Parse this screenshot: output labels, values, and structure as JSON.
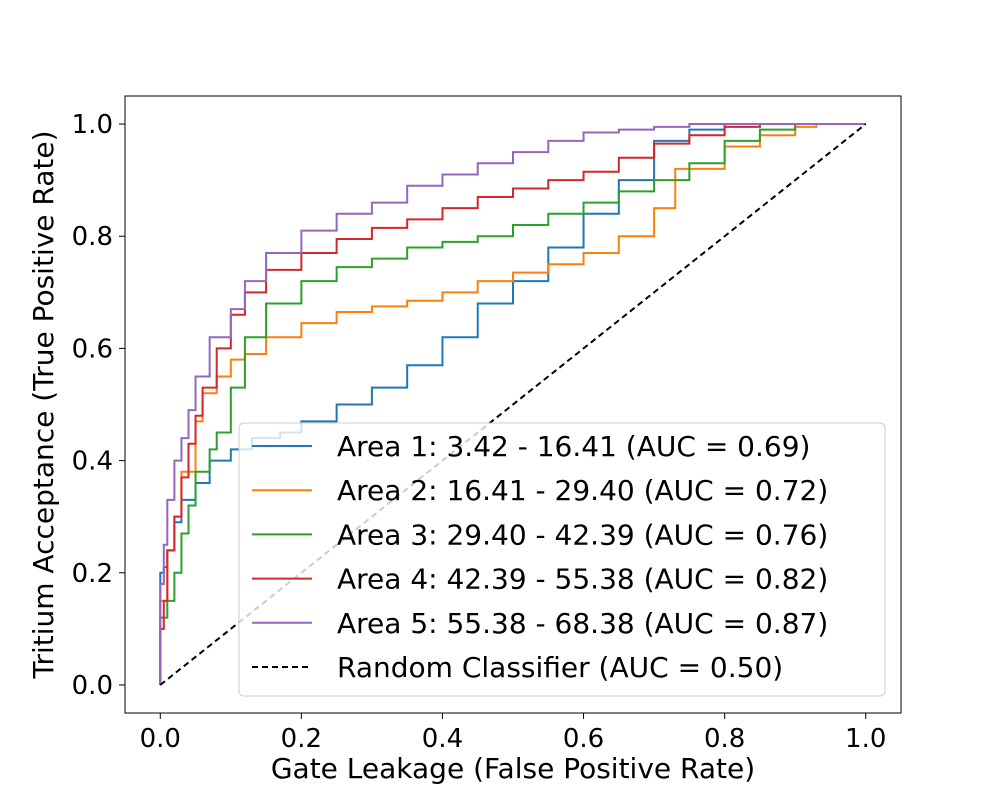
{
  "chart_data": {
    "type": "line",
    "title": "",
    "xlabel": "Gate Leakage (False Positive Rate)",
    "ylabel": "Tritium Acceptance (True Positive Rate)",
    "xlim": [
      -0.05,
      1.05
    ],
    "ylim": [
      -0.05,
      1.05
    ],
    "x_ticks": [
      "0.0",
      "0.2",
      "0.4",
      "0.6",
      "0.8",
      "1.0"
    ],
    "y_ticks": [
      "0.0",
      "0.2",
      "0.4",
      "0.6",
      "0.8",
      "1.0"
    ],
    "grid": false,
    "legend_position": "lower-right",
    "series": [
      {
        "name": "Area 1: 3.42 - 16.41 (AUC = 0.69)",
        "color": "#1f77b4",
        "style": "step",
        "x": [
          0,
          0,
          0.005,
          0.01,
          0.02,
          0.03,
          0.05,
          0.07,
          0.1,
          0.13,
          0.17,
          0.2,
          0.25,
          0.3,
          0.35,
          0.4,
          0.45,
          0.5,
          0.55,
          0.6,
          0.65,
          0.7,
          0.75,
          0.8,
          0.85,
          0.9,
          1.0
        ],
        "y": [
          0,
          0.18,
          0.2,
          0.21,
          0.24,
          0.29,
          0.33,
          0.36,
          0.4,
          0.42,
          0.44,
          0.45,
          0.47,
          0.5,
          0.53,
          0.57,
          0.62,
          0.68,
          0.72,
          0.78,
          0.84,
          0.9,
          0.97,
          0.99,
          1.0,
          1.0,
          1.0
        ]
      },
      {
        "name": "Area 2: 16.41 - 29.40 (AUC = 0.72)",
        "color": "#ff7f0e",
        "style": "step",
        "x": [
          0,
          0,
          0.01,
          0.02,
          0.03,
          0.05,
          0.06,
          0.08,
          0.1,
          0.12,
          0.15,
          0.2,
          0.25,
          0.3,
          0.35,
          0.4,
          0.45,
          0.5,
          0.55,
          0.6,
          0.65,
          0.7,
          0.73,
          0.8,
          0.85,
          0.9,
          0.93,
          1.0
        ],
        "y": [
          0,
          0.08,
          0.15,
          0.24,
          0.3,
          0.38,
          0.47,
          0.52,
          0.55,
          0.58,
          0.59,
          0.62,
          0.645,
          0.665,
          0.675,
          0.685,
          0.7,
          0.72,
          0.735,
          0.75,
          0.77,
          0.8,
          0.85,
          0.92,
          0.96,
          0.98,
          0.995,
          1.0
        ]
      },
      {
        "name": "Area 3: 29.40 - 42.39 (AUC = 0.76)",
        "color": "#2ca02c",
        "style": "step",
        "x": [
          0,
          0,
          0.01,
          0.02,
          0.03,
          0.04,
          0.05,
          0.07,
          0.08,
          0.1,
          0.12,
          0.15,
          0.2,
          0.25,
          0.3,
          0.35,
          0.4,
          0.45,
          0.5,
          0.55,
          0.6,
          0.65,
          0.7,
          0.75,
          0.8,
          0.85,
          0.9,
          1.0
        ],
        "y": [
          0,
          0.1,
          0.12,
          0.15,
          0.2,
          0.27,
          0.32,
          0.38,
          0.42,
          0.45,
          0.53,
          0.62,
          0.68,
          0.72,
          0.745,
          0.76,
          0.78,
          0.79,
          0.8,
          0.82,
          0.84,
          0.86,
          0.88,
          0.9,
          0.93,
          0.97,
          0.99,
          1.0
        ]
      },
      {
        "name": "Area 4: 42.39 - 55.38 (AUC = 0.82)",
        "color": "#d62728",
        "style": "step",
        "x": [
          0,
          0,
          0.005,
          0.01,
          0.02,
          0.03,
          0.04,
          0.05,
          0.06,
          0.08,
          0.1,
          0.12,
          0.15,
          0.2,
          0.25,
          0.3,
          0.35,
          0.4,
          0.45,
          0.5,
          0.55,
          0.6,
          0.65,
          0.7,
          0.75,
          0.8,
          0.85,
          0.9,
          1.0
        ],
        "y": [
          0,
          0.06,
          0.1,
          0.15,
          0.24,
          0.3,
          0.37,
          0.43,
          0.48,
          0.53,
          0.6,
          0.66,
          0.7,
          0.74,
          0.77,
          0.795,
          0.815,
          0.83,
          0.85,
          0.87,
          0.885,
          0.9,
          0.915,
          0.94,
          0.965,
          0.98,
          0.995,
          1.0,
          1.0
        ]
      },
      {
        "name": "Area 5: 55.38 - 68.38 (AUC = 0.87)",
        "color": "#9467bd",
        "style": "step",
        "x": [
          0,
          0,
          0.005,
          0.01,
          0.02,
          0.03,
          0.04,
          0.05,
          0.07,
          0.1,
          0.12,
          0.15,
          0.2,
          0.25,
          0.3,
          0.35,
          0.4,
          0.45,
          0.5,
          0.55,
          0.6,
          0.65,
          0.7,
          0.75,
          0.8,
          0.9,
          1.0
        ],
        "y": [
          0,
          0.1,
          0.18,
          0.25,
          0.33,
          0.4,
          0.44,
          0.49,
          0.55,
          0.62,
          0.67,
          0.72,
          0.77,
          0.81,
          0.84,
          0.86,
          0.89,
          0.91,
          0.93,
          0.95,
          0.97,
          0.985,
          0.99,
          0.995,
          1.0,
          1.0,
          1.0
        ]
      },
      {
        "name": "Random Classifier (AUC = 0.50)",
        "color": "#000000",
        "style": "dashed",
        "x": [
          0,
          1
        ],
        "y": [
          0,
          1
        ]
      }
    ]
  }
}
